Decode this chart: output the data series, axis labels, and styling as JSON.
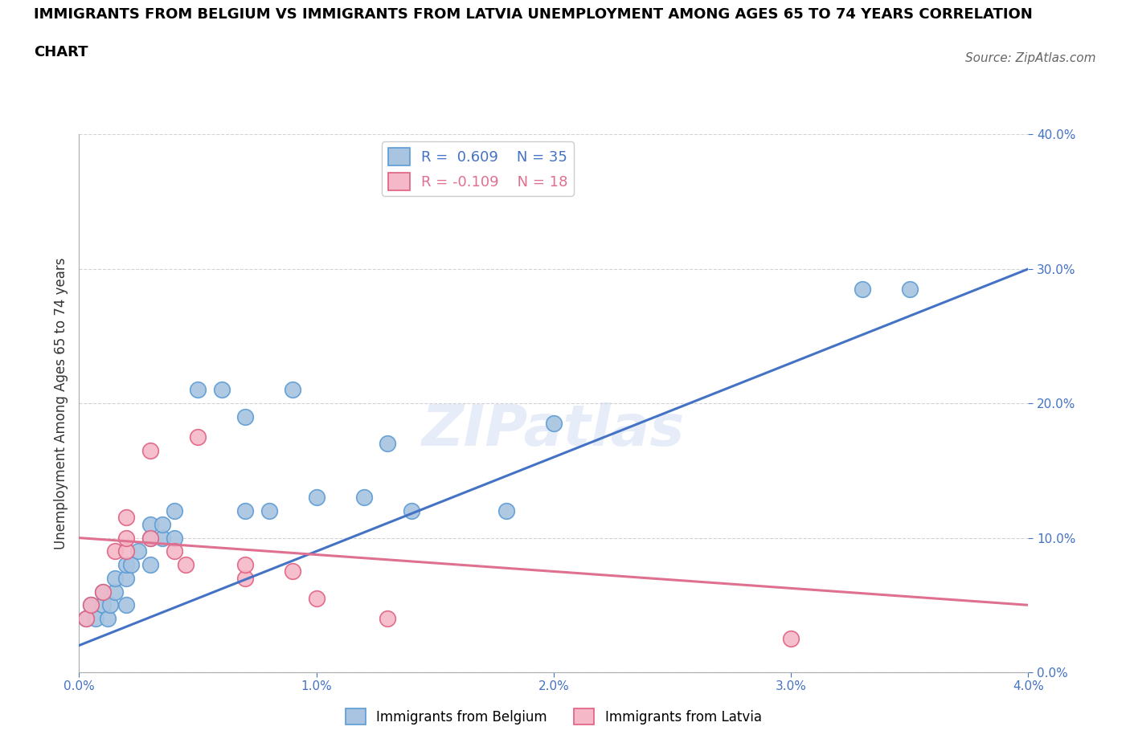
{
  "title_line1": "IMMIGRANTS FROM BELGIUM VS IMMIGRANTS FROM LATVIA UNEMPLOYMENT AMONG AGES 65 TO 74 YEARS CORRELATION",
  "title_line2": "CHART",
  "source": "Source: ZipAtlas.com",
  "ylabel": "Unemployment Among Ages 65 to 74 years",
  "xlim": [
    0.0,
    0.04
  ],
  "ylim": [
    0.0,
    0.4
  ],
  "xtick_labels": [
    "0.0%",
    "1.0%",
    "2.0%",
    "3.0%",
    "4.0%"
  ],
  "xtick_vals": [
    0.0,
    0.01,
    0.02,
    0.03,
    0.04
  ],
  "ytick_labels": [
    "0.0%",
    "10.0%",
    "20.0%",
    "30.0%",
    "40.0%"
  ],
  "ytick_vals": [
    0.0,
    0.1,
    0.2,
    0.3,
    0.4
  ],
  "belgium_color": "#a8c4e0",
  "belgium_edge": "#5b9bd5",
  "latvia_color": "#f4b8c8",
  "latvia_edge": "#e06080",
  "belgium_line_color": "#4472c4",
  "latvia_line_color": "#e07090",
  "tick_color": "#4472c4",
  "R_belgium": 0.609,
  "N_belgium": 35,
  "R_latvia": -0.109,
  "N_latvia": 18,
  "watermark": "ZIPatlas",
  "belgium_points": [
    [
      0.0003,
      0.04
    ],
    [
      0.0005,
      0.05
    ],
    [
      0.0007,
      0.04
    ],
    [
      0.001,
      0.05
    ],
    [
      0.001,
      0.06
    ],
    [
      0.0012,
      0.04
    ],
    [
      0.0013,
      0.05
    ],
    [
      0.0015,
      0.06
    ],
    [
      0.0015,
      0.07
    ],
    [
      0.002,
      0.05
    ],
    [
      0.002,
      0.07
    ],
    [
      0.002,
      0.08
    ],
    [
      0.0022,
      0.08
    ],
    [
      0.0025,
      0.09
    ],
    [
      0.003,
      0.08
    ],
    [
      0.003,
      0.1
    ],
    [
      0.003,
      0.11
    ],
    [
      0.0035,
      0.1
    ],
    [
      0.0035,
      0.11
    ],
    [
      0.004,
      0.1
    ],
    [
      0.004,
      0.12
    ],
    [
      0.005,
      0.21
    ],
    [
      0.006,
      0.21
    ],
    [
      0.007,
      0.19
    ],
    [
      0.007,
      0.12
    ],
    [
      0.008,
      0.12
    ],
    [
      0.009,
      0.21
    ],
    [
      0.01,
      0.13
    ],
    [
      0.012,
      0.13
    ],
    [
      0.013,
      0.17
    ],
    [
      0.014,
      0.12
    ],
    [
      0.02,
      0.185
    ],
    [
      0.018,
      0.12
    ],
    [
      0.033,
      0.285
    ],
    [
      0.035,
      0.285
    ]
  ],
  "latvia_points": [
    [
      0.0003,
      0.04
    ],
    [
      0.0005,
      0.05
    ],
    [
      0.001,
      0.06
    ],
    [
      0.0015,
      0.09
    ],
    [
      0.002,
      0.09
    ],
    [
      0.002,
      0.1
    ],
    [
      0.002,
      0.115
    ],
    [
      0.003,
      0.1
    ],
    [
      0.003,
      0.165
    ],
    [
      0.004,
      0.09
    ],
    [
      0.0045,
      0.08
    ],
    [
      0.005,
      0.175
    ],
    [
      0.007,
      0.07
    ],
    [
      0.007,
      0.08
    ],
    [
      0.009,
      0.075
    ],
    [
      0.01,
      0.055
    ],
    [
      0.013,
      0.04
    ],
    [
      0.03,
      0.025
    ]
  ],
  "bel_line_x": [
    0.0,
    0.04
  ],
  "bel_line_y": [
    0.02,
    0.3
  ],
  "lat_line_x": [
    0.0,
    0.04
  ],
  "lat_line_y": [
    0.1,
    0.05
  ]
}
